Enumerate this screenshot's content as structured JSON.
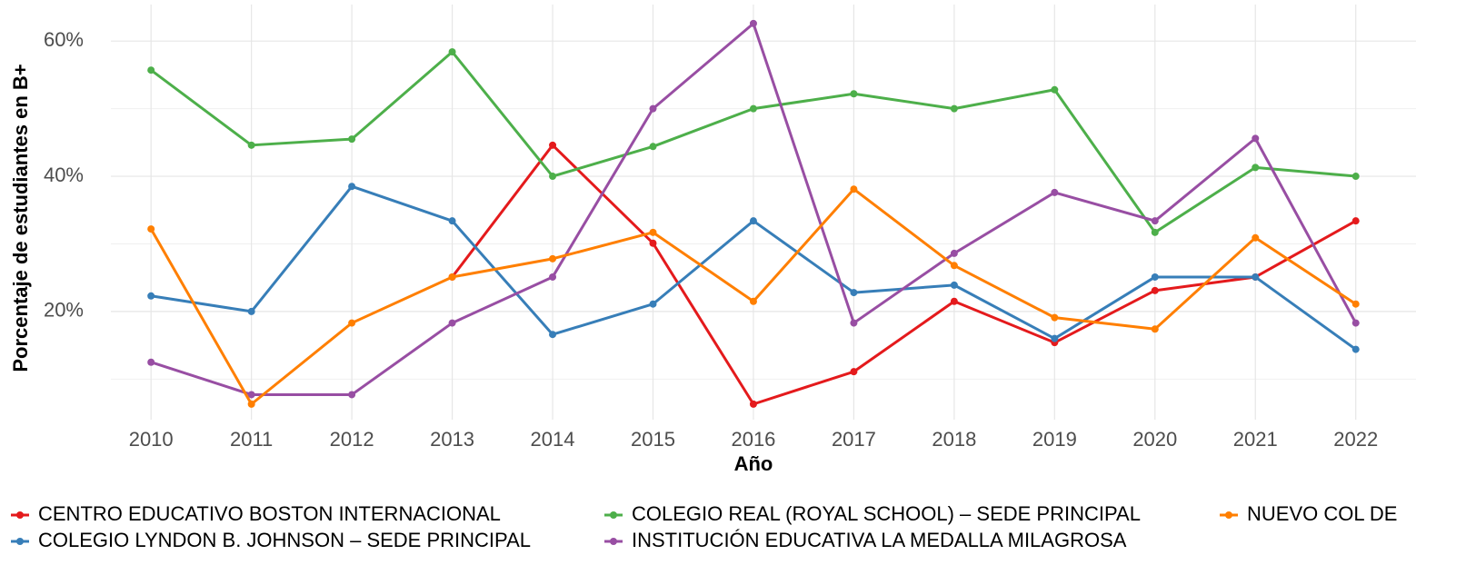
{
  "chart_data": {
    "type": "line",
    "x_label": "Año",
    "y_label": "Porcentaje de estudiantes en B+",
    "x": [
      2010,
      2011,
      2012,
      2013,
      2014,
      2015,
      2016,
      2017,
      2018,
      2019,
      2020,
      2021,
      2022
    ],
    "xlim": [
      2009.6,
      2022.6
    ],
    "xticks": [
      2010,
      2011,
      2012,
      2013,
      2014,
      2015,
      2016,
      2017,
      2018,
      2019,
      2020,
      2021,
      2022
    ],
    "ylim": [
      4,
      65.4
    ],
    "yticks": [
      {
        "value": 20,
        "label": "20%"
      },
      {
        "value": 40,
        "label": "40%"
      },
      {
        "value": 60,
        "label": "60%"
      }
    ],
    "minor_yticks": [
      10,
      30,
      50
    ],
    "grid": true,
    "legend": "bottom",
    "series": [
      {
        "name": "CENTRO EDUCATIVO BOSTON INTERNACIONAL",
        "color": "#e41a1c",
        "values": [
          null,
          null,
          null,
          25.1,
          44.6,
          30.1,
          6.3,
          11.1,
          21.5,
          15.4,
          23.1,
          25.1,
          33.4
        ]
      },
      {
        "name": "COLEGIO LYNDON B. JOHNSON – SEDE PRINCIPAL",
        "color": "#377eb8",
        "values": [
          22.3,
          20,
          38.5,
          33.4,
          16.6,
          21.1,
          33.4,
          22.8,
          23.9,
          16,
          25.1,
          25.1,
          14.4
        ]
      },
      {
        "name": "COLEGIO REAL (ROYAL SCHOOL) – SEDE PRINCIPAL",
        "color": "#4daf4a",
        "values": [
          55.7,
          44.6,
          45.5,
          58.4,
          40,
          44.4,
          50,
          52.2,
          50,
          52.8,
          31.7,
          41.3,
          40
        ]
      },
      {
        "name": "INSTITUCIÓN EDUCATIVA LA MEDALLA MILAGROSA",
        "color": "#984ea3",
        "values": [
          12.5,
          7.7,
          7.7,
          18.3,
          25.1,
          50,
          62.6,
          18.3,
          28.6,
          37.6,
          33.4,
          45.6,
          18.3
        ]
      },
      {
        "name": "NUEVO COL DE",
        "color": "#ff7f00",
        "values": [
          32.2,
          6.3,
          18.3,
          25.1,
          27.8,
          31.7,
          21.5,
          38.1,
          26.8,
          19.1,
          17.4,
          30.9,
          21.1
        ]
      }
    ]
  }
}
